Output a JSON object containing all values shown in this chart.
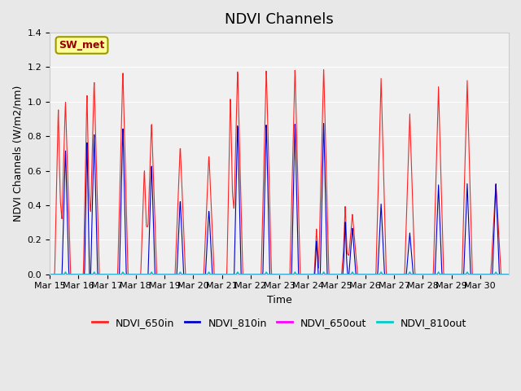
{
  "title": "NDVI Channels",
  "ylabel": "NDVI Channels (W/m2/nm)",
  "xlabel": "Time",
  "annotation": "SW_met",
  "legend_labels": [
    "NDVI_650in",
    "NDVI_810in",
    "NDVI_650out",
    "NDVI_810out"
  ],
  "legend_colors": [
    "#ff2222",
    "#0000cc",
    "#ff00ff",
    "#00cccc"
  ],
  "x_tick_labels": [
    "Mar 15",
    "Mar 16",
    "Mar 17",
    "Mar 18",
    "Mar 19",
    "Mar 20",
    "Mar 21",
    "Mar 22",
    "Mar 23",
    "Mar 24",
    "Mar 25",
    "Mar 26",
    "Mar 27",
    "Mar 28",
    "Mar 29",
    "Mar 30"
  ],
  "ylim": [
    0.0,
    1.4
  ],
  "background_color": "#e8e8e8",
  "plot_bg_color": "#f0f0f0",
  "title_fontsize": 13,
  "axis_fontsize": 9,
  "tick_fontsize": 8,
  "days": 16,
  "day_peaks_650in": [
    1.01,
    1.13,
    1.19,
    0.89,
    0.75,
    0.7,
    1.2,
    1.2,
    1.2,
    1.2,
    0.35,
    1.14,
    0.93,
    1.09,
    1.13,
    0.53
  ],
  "day_peaks_810in": [
    0.73,
    0.83,
    0.87,
    0.65,
    0.44,
    0.38,
    0.89,
    0.89,
    0.89,
    0.89,
    0.27,
    0.41,
    0.24,
    0.52,
    0.53,
    0.53
  ],
  "sub_peaks_650in": [
    0.97,
    1.06,
    null,
    0.62,
    null,
    null,
    1.05,
    null,
    null,
    null,
    0.27,
    null,
    null,
    null,
    null,
    null
  ],
  "sub_peaks_810in": [
    null,
    0.79,
    null,
    null,
    null,
    null,
    null,
    null,
    null,
    null,
    0.2,
    null,
    null,
    null,
    null,
    null
  ]
}
